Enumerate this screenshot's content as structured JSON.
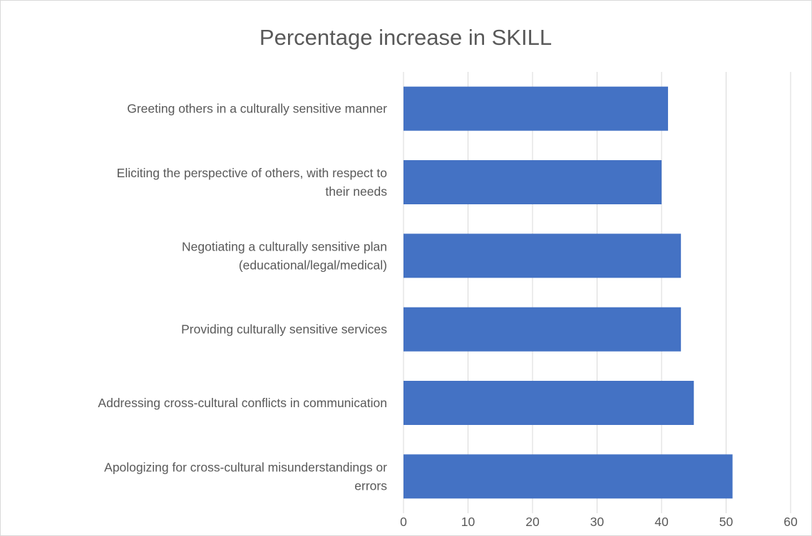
{
  "chart_data": {
    "type": "bar",
    "orientation": "horizontal",
    "title": "Percentage increase in SKILL",
    "xlabel": "",
    "ylabel": "",
    "categories": [
      [
        "Greeting others in a culturally sensitive manner"
      ],
      [
        "Eliciting the perspective of others, with respect to",
        "their needs"
      ],
      [
        "Negotiating a culturally sensitive plan",
        "(educational/legal/medical)"
      ],
      [
        "Providing culturally sensitive services"
      ],
      [
        "Addressing  cross-cultural conflicts in communication"
      ],
      [
        "Apologizing for cross-cultural misunderstandings or",
        "errors"
      ]
    ],
    "values": [
      41,
      40,
      43,
      43,
      45,
      51
    ],
    "xlim": [
      0,
      60
    ],
    "ticks": [
      0,
      10,
      20,
      30,
      40,
      50,
      60
    ],
    "grid": true,
    "legend": "none",
    "colors": {
      "bar": "#4472C4",
      "grid": "#d9d9d9",
      "text": "#595959"
    }
  }
}
